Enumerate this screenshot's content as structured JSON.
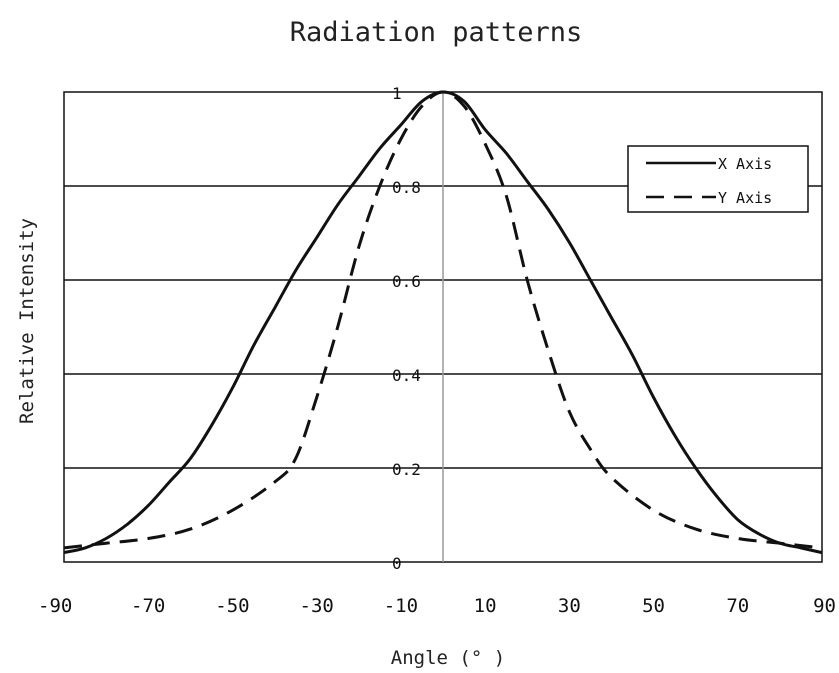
{
  "chart_data": {
    "type": "line",
    "title": "Radiation patterns",
    "xlabel": "Angle (° )",
    "ylabel": "Relative Intensity",
    "xlim": [
      -90,
      90
    ],
    "ylim": [
      0,
      1
    ],
    "xticks": [
      "-90",
      "-70",
      "-50",
      "-30",
      "-10",
      "10",
      "30",
      "50",
      "70",
      "90"
    ],
    "yticks": [
      "0",
      "0.2",
      "0.4",
      "0.6",
      "0.8",
      "1"
    ],
    "grid": "horizontal",
    "legend_position": "top-right",
    "series": [
      {
        "name": "X Axis",
        "style": "solid",
        "color": "#111111",
        "points": [
          [
            -90,
            0.02
          ],
          [
            -85,
            0.03
          ],
          [
            -80,
            0.05
          ],
          [
            -75,
            0.08
          ],
          [
            -70,
            0.12
          ],
          [
            -65,
            0.17
          ],
          [
            -60,
            0.22
          ],
          [
            -55,
            0.29
          ],
          [
            -50,
            0.37
          ],
          [
            -45,
            0.46
          ],
          [
            -40,
            0.54
          ],
          [
            -35,
            0.62
          ],
          [
            -30,
            0.69
          ],
          [
            -25,
            0.76
          ],
          [
            -20,
            0.82
          ],
          [
            -15,
            0.88
          ],
          [
            -10,
            0.93
          ],
          [
            -5,
            0.98
          ],
          [
            0,
            1.0
          ],
          [
            5,
            0.98
          ],
          [
            10,
            0.92
          ],
          [
            15,
            0.87
          ],
          [
            20,
            0.81
          ],
          [
            25,
            0.75
          ],
          [
            30,
            0.68
          ],
          [
            35,
            0.6
          ],
          [
            40,
            0.52
          ],
          [
            45,
            0.44
          ],
          [
            50,
            0.35
          ],
          [
            55,
            0.27
          ],
          [
            60,
            0.2
          ],
          [
            65,
            0.14
          ],
          [
            70,
            0.09
          ],
          [
            75,
            0.06
          ],
          [
            80,
            0.04
          ],
          [
            85,
            0.03
          ],
          [
            90,
            0.02
          ]
        ]
      },
      {
        "name": "Y Axis",
        "style": "dashed",
        "color": "#111111",
        "points": [
          [
            -90,
            0.03
          ],
          [
            -80,
            0.04
          ],
          [
            -70,
            0.05
          ],
          [
            -60,
            0.07
          ],
          [
            -50,
            0.11
          ],
          [
            -40,
            0.17
          ],
          [
            -35,
            0.22
          ],
          [
            -30,
            0.35
          ],
          [
            -25,
            0.5
          ],
          [
            -20,
            0.67
          ],
          [
            -15,
            0.8
          ],
          [
            -10,
            0.9
          ],
          [
            -5,
            0.97
          ],
          [
            0,
            1.0
          ],
          [
            5,
            0.97
          ],
          [
            10,
            0.89
          ],
          [
            15,
            0.78
          ],
          [
            20,
            0.6
          ],
          [
            25,
            0.45
          ],
          [
            30,
            0.32
          ],
          [
            35,
            0.24
          ],
          [
            40,
            0.18
          ],
          [
            50,
            0.11
          ],
          [
            60,
            0.07
          ],
          [
            70,
            0.05
          ],
          [
            80,
            0.04
          ],
          [
            90,
            0.03
          ]
        ]
      }
    ]
  }
}
